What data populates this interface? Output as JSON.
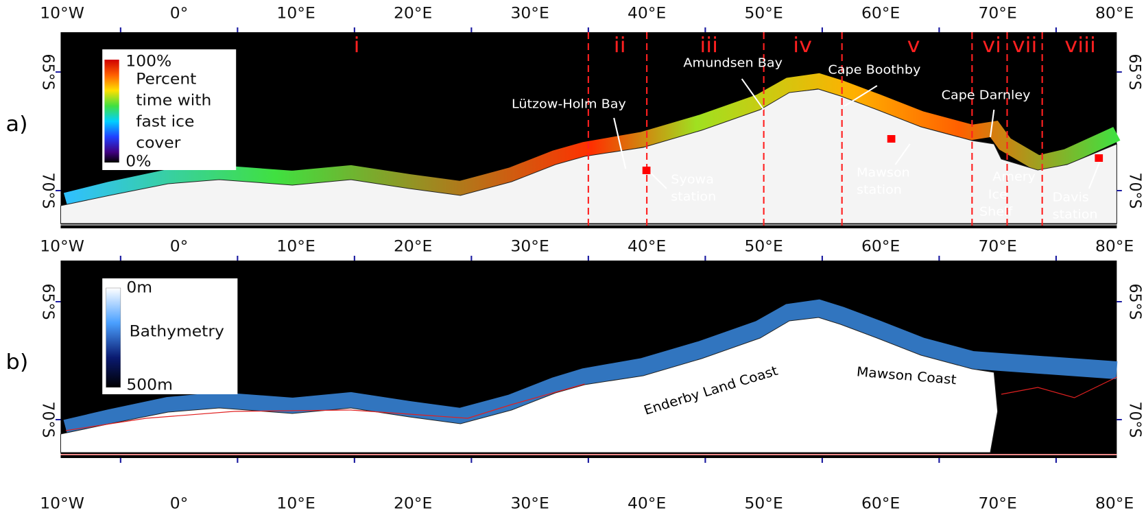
{
  "panels": [
    {
      "label": "a)",
      "colorbar": {
        "top": "100%",
        "bottom": "0%",
        "title_lines": [
          "Percent",
          "time with",
          "fast ice",
          "cover"
        ]
      },
      "regions": [
        "i",
        "ii",
        "iii",
        "iv",
        "v",
        "vi",
        "vii",
        "viii"
      ],
      "annotations": {
        "lutzow": "Lützow-Holm Bay",
        "syowa": [
          "Syowa",
          "station"
        ],
        "amundsen": "Amundsen Bay",
        "boothby": "Cape Boothby",
        "mawson": [
          "Mawson",
          "station"
        ],
        "darnley": "Cape Darnley",
        "amery": [
          "Amery",
          "Ice",
          "Shelf"
        ],
        "davis": [
          "Davis",
          "station"
        ]
      }
    },
    {
      "label": "b)",
      "colorbar": {
        "top": "0m",
        "bottom": "500m",
        "title": "Bathymetry"
      },
      "annotations": {
        "enderby": "Enderby Land Coast",
        "mawson_coast": "Mawson Coast"
      }
    }
  ],
  "x_tick_labels": [
    "10°W",
    "0°",
    "10°E",
    "20°E",
    "30°E",
    "40°E",
    "50°E",
    "60°E",
    "70°E",
    "80°E"
  ],
  "y_tick_labels": [
    "65°S",
    "70°S"
  ]
}
